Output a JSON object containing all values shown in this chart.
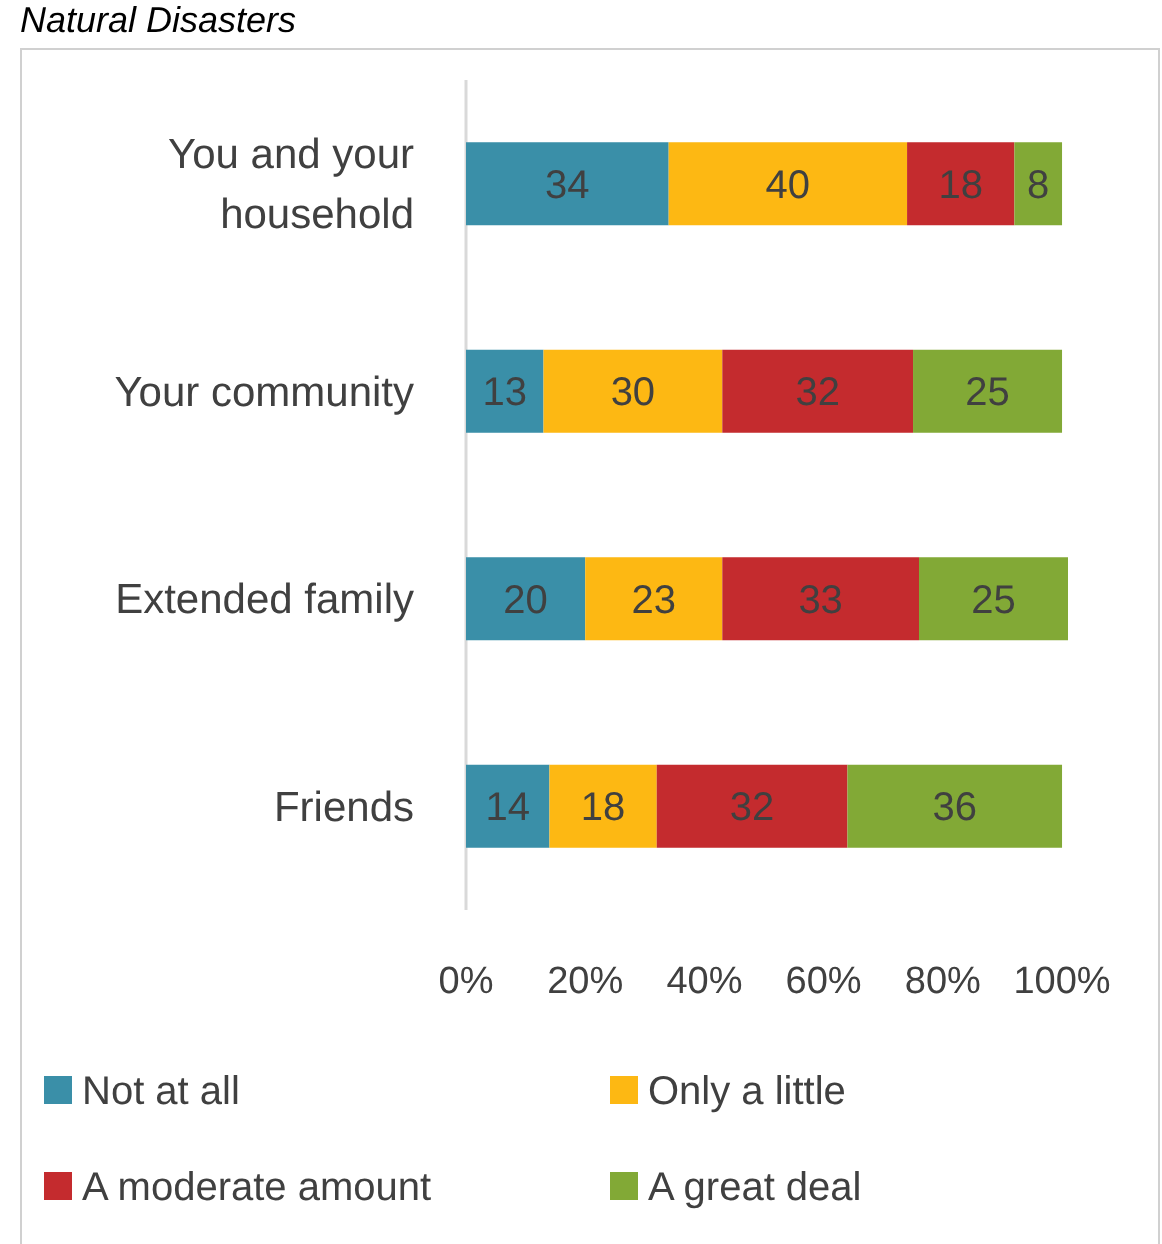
{
  "chart_data": {
    "type": "bar",
    "orientation": "horizontal",
    "stacked": true,
    "title": "Natural Disasters",
    "categories": [
      "You and your household",
      "Your community",
      "Extended family",
      "Friends"
    ],
    "series": [
      {
        "name": "Not at all",
        "color": "#3a8fa8",
        "values": [
          34,
          13,
          20,
          14
        ]
      },
      {
        "name": "Only a little",
        "color": "#fdb813",
        "values": [
          40,
          30,
          23,
          18
        ]
      },
      {
        "name": "A moderate amount",
        "color": "#c42b2e",
        "values": [
          18,
          32,
          33,
          32
        ]
      },
      {
        "name": "A great deal",
        "color": "#82a936",
        "values": [
          8,
          25,
          25,
          36
        ]
      }
    ],
    "xlim": [
      0,
      101
    ],
    "xticks": [
      {
        "value": 0,
        "label": "0%"
      },
      {
        "value": 20,
        "label": "20%"
      },
      {
        "value": 40,
        "label": "40%"
      },
      {
        "value": 60,
        "label": "60%"
      },
      {
        "value": 80,
        "label": "80%"
      },
      {
        "value": 100,
        "label": "100%"
      }
    ],
    "data_labels": true,
    "grid": false,
    "legend": "bottom"
  }
}
